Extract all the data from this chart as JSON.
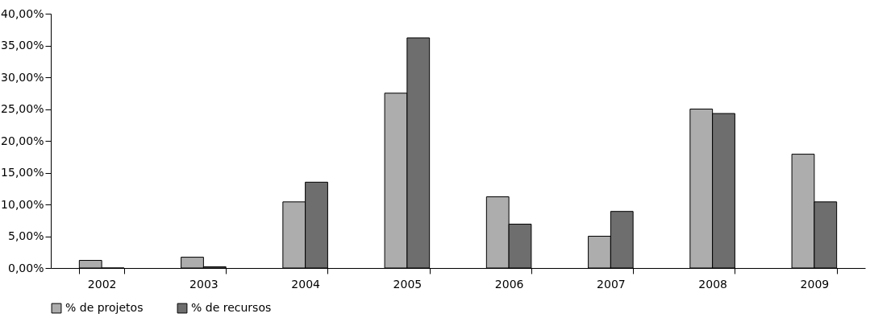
{
  "chart_data": {
    "type": "bar",
    "categories": [
      "2002",
      "2003",
      "2004",
      "2005",
      "2006",
      "2007",
      "2008",
      "2009"
    ],
    "series": [
      {
        "name": "% de projetos",
        "color": "#adadad",
        "values": [
          1.2,
          1.7,
          10.4,
          27.5,
          11.2,
          5.0,
          25.0,
          17.9
        ]
      },
      {
        "name": "% de recursos",
        "color": "#6e6e6e",
        "values": [
          0,
          0.2,
          13.5,
          36.2,
          6.9,
          8.9,
          24.3,
          10.4
        ]
      }
    ],
    "ylim": [
      0,
      40
    ],
    "yticks": [
      {
        "value": 0,
        "label": "0,00%"
      },
      {
        "value": 5,
        "label": "5,00%"
      },
      {
        "value": 10,
        "label": "10,00%"
      },
      {
        "value": 15,
        "label": "15,00%"
      },
      {
        "value": 20,
        "label": "20,00%"
      },
      {
        "value": 25,
        "label": "25,00%"
      },
      {
        "value": 30,
        "label": "30,00%"
      },
      {
        "value": 35,
        "label": "35,00%"
      },
      {
        "value": 40,
        "label": "40,00%"
      }
    ],
    "legend": "bottom",
    "grid": false
  }
}
